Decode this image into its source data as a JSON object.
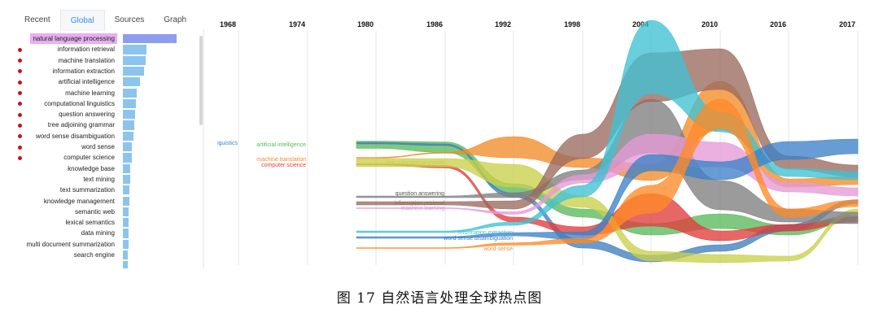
{
  "sidebar": {
    "tabs": [
      "Recent",
      "Global",
      "Sources",
      "Graph"
    ],
    "active_tab": "Global",
    "keywords": [
      {
        "label": "natural language processing",
        "value": 100,
        "dot": false
      },
      {
        "label": "information retrieval",
        "value": 44,
        "dot": true
      },
      {
        "label": "machine translation",
        "value": 42,
        "dot": true
      },
      {
        "label": "information extraction",
        "value": 39,
        "dot": true
      },
      {
        "label": "artificial intelligence",
        "value": 32,
        "dot": true
      },
      {
        "label": "machine learning",
        "value": 25,
        "dot": true
      },
      {
        "label": "computational linguistics",
        "value": 24,
        "dot": true
      },
      {
        "label": "question answering",
        "value": 22,
        "dot": true
      },
      {
        "label": "tree adjoining grammar",
        "value": 21,
        "dot": true
      },
      {
        "label": "word sense disambiguation",
        "value": 19,
        "dot": true
      },
      {
        "label": "word sense",
        "value": 17,
        "dot": true
      },
      {
        "label": "computer science",
        "value": 16,
        "dot": true
      },
      {
        "label": "knowledge base",
        "value": 14,
        "dot": false
      },
      {
        "label": "text mining",
        "value": 13,
        "dot": false
      },
      {
        "label": "text summarization",
        "value": 12,
        "dot": false
      },
      {
        "label": "knowledge management",
        "value": 12,
        "dot": false
      },
      {
        "label": "semantic web",
        "value": 11,
        "dot": false
      },
      {
        "label": "lexical semantics",
        "value": 11,
        "dot": false
      },
      {
        "label": "data mining",
        "value": 10,
        "dot": false
      },
      {
        "label": "multi document summarization",
        "value": 10,
        "dot": false
      },
      {
        "label": "search engine",
        "value": 9,
        "dot": false
      },
      {
        "label": "",
        "value": 9,
        "dot": false
      }
    ]
  },
  "chart_data": {
    "type": "area",
    "x": [
      1968,
      1974,
      1980,
      1986,
      1992,
      1998,
      2004,
      2010,
      2016,
      2017
    ],
    "x_tick_labels": [
      "1968",
      "1974",
      "1980",
      "1986",
      "1992",
      "1998",
      "2004",
      "2010",
      "2016",
      "2017"
    ],
    "grid": true,
    "series": [
      {
        "name": "artificial intelligence",
        "color": "#5bb85b",
        "center": [
          null,
          null,
          178,
          181,
          232,
          262,
          282,
          272,
          283,
          268
        ],
        "width": [
          null,
          null,
          9,
          13,
          12,
          10,
          14,
          18,
          12,
          6
        ]
      },
      {
        "name": "computational linguistics",
        "color": "#3f7fbf",
        "center": [
          null,
          null,
          176,
          178,
          240,
          300,
          318,
          305,
          280,
          248
        ],
        "width": [
          null,
          null,
          2,
          2,
          5,
          10,
          8,
          8,
          8,
          5
        ]
      },
      {
        "name": "machine translation",
        "color": "#f28c28",
        "center": [
          null,
          null,
          194,
          188,
          181,
          200,
          212,
          130,
          225,
          222
        ],
        "width": [
          null,
          null,
          1,
          1,
          26,
          12,
          20,
          60,
          10,
          10
        ]
      },
      {
        "name": "computer science",
        "color": "#e03c3c",
        "center": [
          null,
          null,
          202,
          205,
          270,
          284,
          258,
          290,
          280,
          270
        ],
        "width": [
          null,
          null,
          1,
          3,
          6,
          10,
          40,
          12,
          8,
          6
        ]
      },
      {
        "name": "tree adjoining grammar",
        "color": "#c9cf4a",
        "center": [
          null,
          null,
          null,
          200,
          216,
          248,
          315,
          318,
          318,
          260
        ],
        "width": [
          null,
          null,
          null,
          10,
          28,
          14,
          12,
          10,
          6,
          6
        ]
      },
      {
        "name": "question answering",
        "color": "#7f7f7f",
        "center": [
          null,
          null,
          null,
          242,
          240,
          215,
          155,
          240,
          265,
          268
        ],
        "width": [
          null,
          null,
          null,
          2,
          6,
          12,
          66,
          36,
          16,
          14
        ]
      },
      {
        "name": "information retrieval",
        "color": "#9a6a5f",
        "center": [
          null,
          null,
          null,
          250,
          252,
          180,
          95,
          85,
          200,
          210
        ],
        "width": [
          null,
          null,
          null,
          4,
          10,
          30,
          60,
          50,
          16,
          14
        ]
      },
      {
        "name": "machine learning",
        "color": "#e59ad6",
        "center": [
          null,
          null,
          null,
          256,
          262,
          220,
          185,
          190,
          230,
          236
        ],
        "width": [
          null,
          null,
          null,
          1,
          3,
          10,
          40,
          30,
          12,
          10
        ]
      },
      {
        "name": "information extraction",
        "color": "#3fc2d4",
        "center": [
          null,
          null,
          null,
          285,
          275,
          235,
          70,
          150,
          212,
          216
        ],
        "width": [
          null,
          null,
          null,
          2,
          4,
          14,
          90,
          24,
          10,
          10
        ]
      },
      {
        "name": "word sense disambiguation",
        "color": "#3c82c8",
        "center": [
          null,
          null,
          null,
          292,
          288,
          290,
          200,
          210,
          185,
          180
        ],
        "width": [
          null,
          null,
          null,
          2,
          4,
          10,
          20,
          22,
          22,
          18
        ]
      },
      {
        "name": "word sense",
        "color": "#ff8a28",
        "center": [
          null,
          null,
          null,
          305,
          300,
          296,
          245,
          140,
          262,
          250
        ],
        "width": [
          null,
          null,
          null,
          1,
          3,
          6,
          34,
          36,
          10,
          8
        ]
      }
    ],
    "stream_labels": [
      {
        "text": "iguistics",
        "color": "#3f7fbf"
      },
      {
        "text": "artificial intelligence",
        "color": "#5bb85b"
      },
      {
        "text": "machine translation",
        "color": "#f28c28"
      },
      {
        "text": "computer science",
        "color": "#e03c3c"
      },
      {
        "text": "tree adjoining grammar",
        "color": "#c9cf4a"
      },
      {
        "text": "question answering",
        "color": "#555555"
      },
      {
        "text": "information retrieval",
        "color": "#9a6a5f"
      },
      {
        "text": "machine learning",
        "color": "#e59ad6"
      },
      {
        "text": "information extraction",
        "color": "#3fc2d4"
      },
      {
        "text": "word sense disambiguation",
        "color": "#3c82c8"
      },
      {
        "text": "word sense",
        "color": "#ff8a28"
      }
    ]
  },
  "caption": "图 17 自然语言处理全球热点图"
}
